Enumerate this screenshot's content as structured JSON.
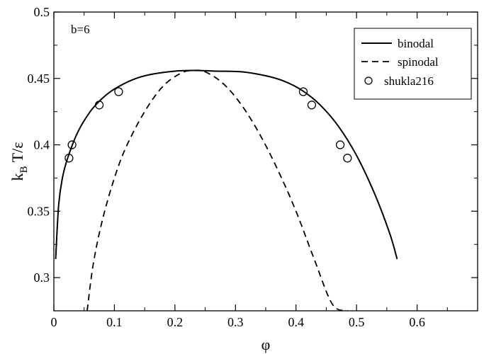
{
  "chart_data": {
    "type": "line",
    "annotation": "b=6",
    "xlabel": "φ",
    "ylabel": {
      "main": "k",
      "sub": "B",
      "rest": " T/ε"
    },
    "xlim": [
      0,
      0.7
    ],
    "ylim": [
      0.275,
      0.5
    ],
    "x_ticks": [
      0,
      0.1,
      0.2,
      0.3,
      0.4,
      0.5,
      0.6
    ],
    "x_tick_labels": [
      "0",
      "0.1",
      "0.2",
      "0.3",
      "0.4",
      "0.5",
      "0.6"
    ],
    "y_ticks": [
      0.3,
      0.35,
      0.4,
      0.45,
      0.5
    ],
    "y_tick_labels": [
      "0.3",
      "0.35",
      "0.4",
      "0.45",
      "0.5"
    ],
    "legend_position": "top-right",
    "grid": false,
    "series": [
      {
        "name": "binodal",
        "style": "solid",
        "x": [
          0.003,
          0.008,
          0.015,
          0.025,
          0.04,
          0.06,
          0.08,
          0.1,
          0.13,
          0.16,
          0.2,
          0.23,
          0.27,
          0.31,
          0.35,
          0.38,
          0.41,
          0.44,
          0.47,
          0.5,
          0.53,
          0.555,
          0.567
        ],
        "y": [
          0.314,
          0.355,
          0.377,
          0.393,
          0.41,
          0.425,
          0.435,
          0.442,
          0.449,
          0.453,
          0.4555,
          0.456,
          0.4555,
          0.455,
          0.452,
          0.448,
          0.441,
          0.43,
          0.414,
          0.392,
          0.363,
          0.333,
          0.314
        ]
      },
      {
        "name": "spinodal",
        "style": "dashed",
        "x": [
          0.055,
          0.065,
          0.08,
          0.1,
          0.12,
          0.15,
          0.18,
          0.21,
          0.23,
          0.25,
          0.28,
          0.31,
          0.34,
          0.37,
          0.4,
          0.43,
          0.46,
          0.485
        ],
        "y": [
          0.275,
          0.31,
          0.343,
          0.375,
          0.399,
          0.425,
          0.444,
          0.454,
          0.456,
          0.455,
          0.446,
          0.43,
          0.408,
          0.381,
          0.35,
          0.314,
          0.28,
          0.275
        ]
      },
      {
        "name": "shukla216",
        "style": "markers",
        "x": [
          0.025,
          0.03,
          0.075,
          0.107,
          0.412,
          0.426,
          0.473,
          0.485
        ],
        "y": [
          0.39,
          0.4,
          0.43,
          0.44,
          0.44,
          0.43,
          0.4,
          0.39
        ]
      }
    ]
  }
}
